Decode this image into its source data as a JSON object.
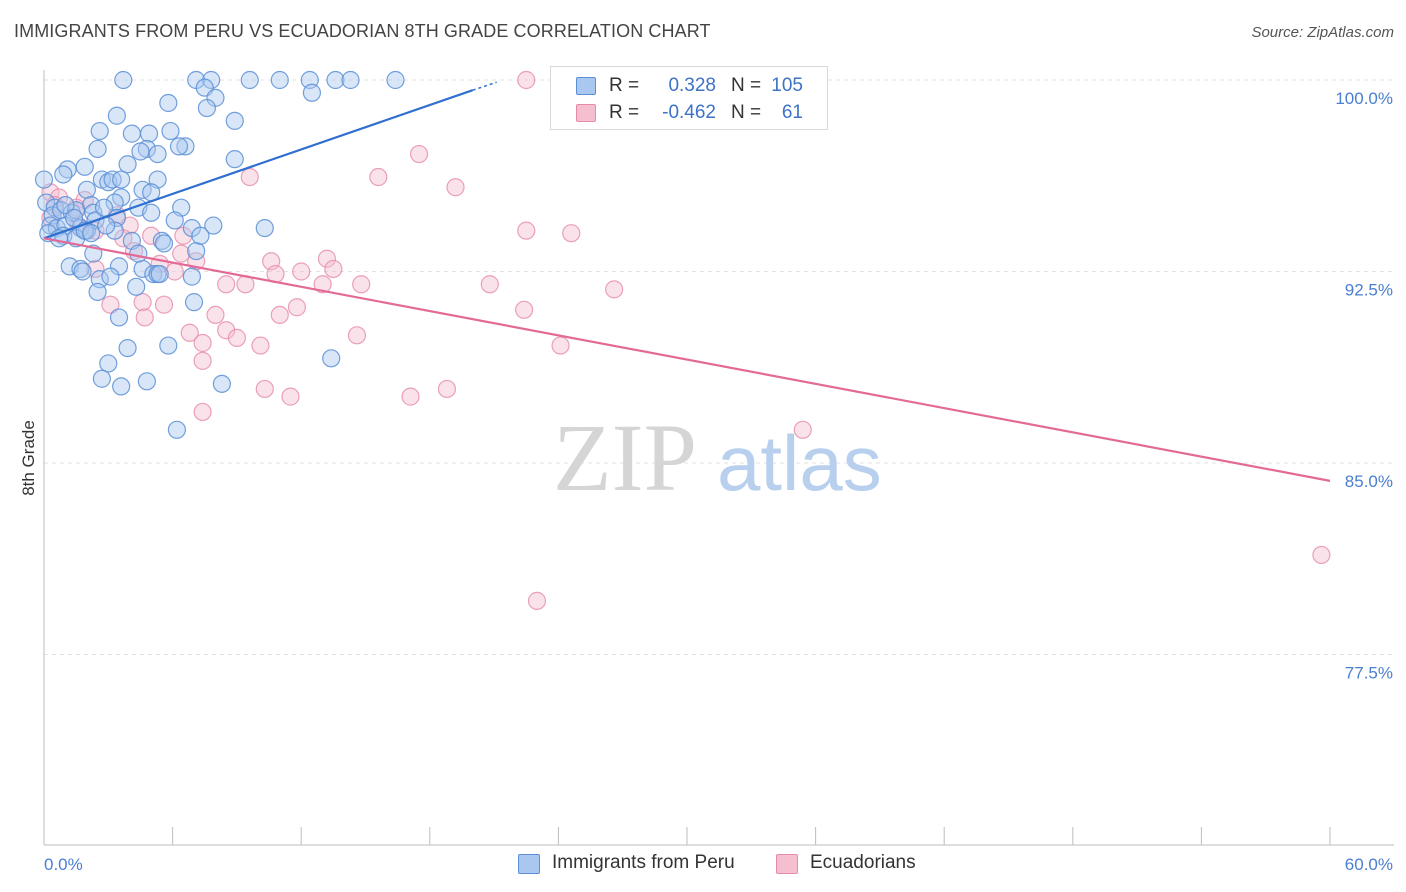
{
  "header": {
    "title": "IMMIGRANTS FROM PERU VS ECUADORIAN 8TH GRADE CORRELATION CHART",
    "source": "Source: ZipAtlas.com"
  },
  "watermark": {
    "part1": "ZIP",
    "part2": "atlas"
  },
  "legend": {
    "series1": {
      "r_label": "R =",
      "r_value": "0.328",
      "n_label": "N =",
      "n_value": "105"
    },
    "series2": {
      "r_label": "R =",
      "r_value": "-0.462",
      "n_label": "N =",
      "n_value": "61"
    }
  },
  "bottom_legend": {
    "series1": "Immigrants from Peru",
    "series2": "Ecuadorians"
  },
  "colors": {
    "series1_fill": "#a9c7ef",
    "series1_stroke": "#5b8fd6",
    "series1_line": "#2f6fd0",
    "series2_fill": "#f5bfd0",
    "series2_stroke": "#e68aab",
    "series2_line": "#e36a96",
    "tick_text": "#4a7fd0",
    "grid": "#e2e2e2"
  },
  "chart_data": {
    "type": "scatter",
    "title": "IMMIGRANTS FROM PERU VS ECUADORIAN 8TH GRADE CORRELATION CHART",
    "xlabel": "",
    "ylabel": "8th Grade",
    "xlim": [
      0,
      60
    ],
    "ylim": [
      70,
      100.7
    ],
    "x_ticks": [
      "0.0%",
      "60.0%"
    ],
    "y_ticks": [
      {
        "value": 100.0,
        "label": "100.0%"
      },
      {
        "value": 92.5,
        "label": "92.5%"
      },
      {
        "value": 85.0,
        "label": "85.0%"
      },
      {
        "value": 77.5,
        "label": "77.5%"
      }
    ],
    "grid": true,
    "legend_position": "top-center",
    "series": [
      {
        "name": "Immigrants from Peru",
        "R": 0.328,
        "N": 105,
        "trend": {
          "x": [
            0,
            20.0
          ],
          "y": [
            93.8,
            99.6
          ]
        },
        "points": [
          [
            3.7,
            100.0
          ],
          [
            7.1,
            100.0
          ],
          [
            7.8,
            100.0
          ],
          [
            9.6,
            100.0
          ],
          [
            11.0,
            100.0
          ],
          [
            12.4,
            100.0
          ],
          [
            13.6,
            100.0
          ],
          [
            14.3,
            100.0
          ],
          [
            16.4,
            100.0
          ],
          [
            7.5,
            99.7
          ],
          [
            12.5,
            99.5
          ],
          [
            5.8,
            99.1
          ],
          [
            8.0,
            99.3
          ],
          [
            7.6,
            98.9
          ],
          [
            3.4,
            98.6
          ],
          [
            8.9,
            98.4
          ],
          [
            2.6,
            98.0
          ],
          [
            4.1,
            97.9
          ],
          [
            4.9,
            97.9
          ],
          [
            5.9,
            98.0
          ],
          [
            2.5,
            97.3
          ],
          [
            4.8,
            97.3
          ],
          [
            4.5,
            97.2
          ],
          [
            5.3,
            97.1
          ],
          [
            6.6,
            97.4
          ],
          [
            6.3,
            97.4
          ],
          [
            8.9,
            96.9
          ],
          [
            1.1,
            96.5
          ],
          [
            1.9,
            96.6
          ],
          [
            0.9,
            96.3
          ],
          [
            3.9,
            96.7
          ],
          [
            2.7,
            96.1
          ],
          [
            3.0,
            96.0
          ],
          [
            3.2,
            96.1
          ],
          [
            3.6,
            96.1
          ],
          [
            5.3,
            96.1
          ],
          [
            2.0,
            95.7
          ],
          [
            4.6,
            95.7
          ],
          [
            5.0,
            95.6
          ],
          [
            3.6,
            95.4
          ],
          [
            3.3,
            95.2
          ],
          [
            2.2,
            95.1
          ],
          [
            0.1,
            95.2
          ],
          [
            0.5,
            95.0
          ],
          [
            0.4,
            94.7
          ],
          [
            0.8,
            94.9
          ],
          [
            1.3,
            94.8
          ],
          [
            1.5,
            94.9
          ],
          [
            2.3,
            94.8
          ],
          [
            2.4,
            94.5
          ],
          [
            4.4,
            95.0
          ],
          [
            6.4,
            95.0
          ],
          [
            3.4,
            94.6
          ],
          [
            6.1,
            94.5
          ],
          [
            0.3,
            94.3
          ],
          [
            0.6,
            94.2
          ],
          [
            1.0,
            94.3
          ],
          [
            1.7,
            94.2
          ],
          [
            2.0,
            94.1
          ],
          [
            0.2,
            94.0
          ],
          [
            0.9,
            93.9
          ],
          [
            1.5,
            93.8
          ],
          [
            1.9,
            94.1
          ],
          [
            2.2,
            94.0
          ],
          [
            3.3,
            94.1
          ],
          [
            7.9,
            94.3
          ],
          [
            10.3,
            94.2
          ],
          [
            4.1,
            93.7
          ],
          [
            5.5,
            93.7
          ],
          [
            2.3,
            93.2
          ],
          [
            7.1,
            93.3
          ],
          [
            5.6,
            93.6
          ],
          [
            1.2,
            92.7
          ],
          [
            1.7,
            92.6
          ],
          [
            3.5,
            92.7
          ],
          [
            4.6,
            92.6
          ],
          [
            2.6,
            92.2
          ],
          [
            5.1,
            92.4
          ],
          [
            5.3,
            92.4
          ],
          [
            5.4,
            92.4
          ],
          [
            6.9,
            92.3
          ],
          [
            3.1,
            92.3
          ],
          [
            2.5,
            91.7
          ],
          [
            4.3,
            91.9
          ],
          [
            7.0,
            91.3
          ],
          [
            3.5,
            90.7
          ],
          [
            3.9,
            89.5
          ],
          [
            5.8,
            89.6
          ],
          [
            3.0,
            88.9
          ],
          [
            13.4,
            89.1
          ],
          [
            2.7,
            88.3
          ],
          [
            3.6,
            88.0
          ],
          [
            4.8,
            88.2
          ],
          [
            8.3,
            88.1
          ],
          [
            6.2,
            86.3
          ],
          [
            0.0,
            96.1
          ],
          [
            1.0,
            95.1
          ],
          [
            1.4,
            94.6
          ],
          [
            2.9,
            94.3
          ],
          [
            0.7,
            93.8
          ],
          [
            1.8,
            92.5
          ],
          [
            4.4,
            93.2
          ],
          [
            6.9,
            94.2
          ],
          [
            2.8,
            95.0
          ],
          [
            5.0,
            94.8
          ],
          [
            7.3,
            93.9
          ]
        ]
      },
      {
        "name": "Ecuadorians",
        "R": -0.462,
        "N": 61,
        "trend": {
          "x": [
            0,
            60.0
          ],
          "y": [
            93.8,
            84.3
          ]
        },
        "points": [
          [
            22.5,
            100.0
          ],
          [
            17.5,
            97.1
          ],
          [
            9.6,
            96.2
          ],
          [
            15.6,
            96.2
          ],
          [
            19.2,
            95.8
          ],
          [
            0.3,
            95.6
          ],
          [
            0.7,
            95.4
          ],
          [
            1.9,
            95.3
          ],
          [
            0.5,
            95.1
          ],
          [
            1.5,
            95.0
          ],
          [
            3.4,
            94.7
          ],
          [
            0.3,
            94.6
          ],
          [
            1.6,
            94.3
          ],
          [
            2.4,
            94.1
          ],
          [
            4.0,
            94.3
          ],
          [
            22.5,
            94.1
          ],
          [
            24.6,
            94.0
          ],
          [
            3.7,
            93.8
          ],
          [
            5.0,
            93.9
          ],
          [
            6.5,
            93.9
          ],
          [
            4.2,
            93.3
          ],
          [
            6.4,
            93.2
          ],
          [
            7.1,
            92.9
          ],
          [
            10.6,
            92.9
          ],
          [
            13.2,
            93.0
          ],
          [
            13.5,
            92.6
          ],
          [
            5.4,
            92.8
          ],
          [
            2.4,
            92.6
          ],
          [
            6.1,
            92.5
          ],
          [
            10.8,
            92.4
          ],
          [
            12.0,
            92.5
          ],
          [
            9.4,
            92.0
          ],
          [
            8.5,
            92.0
          ],
          [
            13.0,
            92.0
          ],
          [
            14.8,
            92.0
          ],
          [
            20.8,
            92.0
          ],
          [
            26.6,
            91.8
          ],
          [
            5.6,
            91.2
          ],
          [
            11.8,
            91.1
          ],
          [
            3.1,
            91.2
          ],
          [
            4.6,
            91.3
          ],
          [
            8.0,
            90.8
          ],
          [
            11.0,
            90.8
          ],
          [
            4.7,
            90.7
          ],
          [
            22.4,
            91.0
          ],
          [
            6.8,
            90.1
          ],
          [
            8.5,
            90.2
          ],
          [
            9.0,
            89.9
          ],
          [
            14.6,
            90.0
          ],
          [
            7.4,
            89.7
          ],
          [
            10.1,
            89.6
          ],
          [
            24.1,
            89.6
          ],
          [
            7.4,
            89.0
          ],
          [
            10.3,
            87.9
          ],
          [
            11.5,
            87.6
          ],
          [
            17.1,
            87.6
          ],
          [
            18.8,
            87.9
          ],
          [
            7.4,
            87.0
          ],
          [
            35.4,
            86.3
          ],
          [
            59.6,
            81.4
          ],
          [
            23.0,
            79.6
          ]
        ]
      }
    ]
  }
}
